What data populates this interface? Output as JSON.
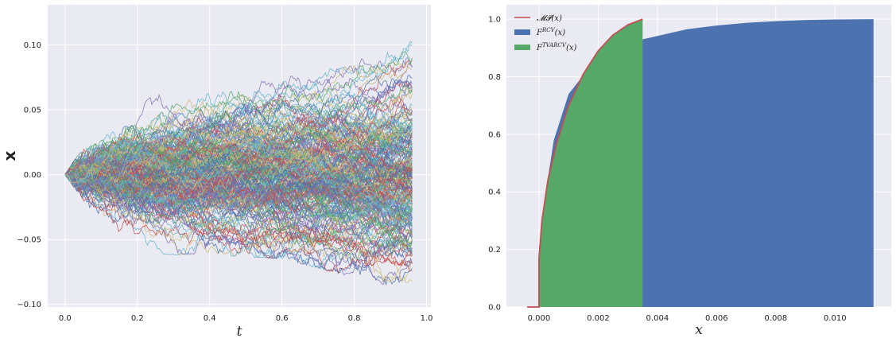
{
  "chart_data": [
    {
      "type": "line",
      "description_role": "simulated random paths",
      "xlabel": "t",
      "ylabel": "x",
      "xlim": [
        -0.048,
        1.012
      ],
      "ylim": [
        -0.102,
        0.131
      ],
      "x_ticks": [
        0.0,
        0.2,
        0.4,
        0.6,
        0.8,
        1.0
      ],
      "x_tick_labels": [
        "0.0",
        "0.2",
        "0.4",
        "0.6",
        "0.8",
        "1.0"
      ],
      "y_ticks": [
        -0.1,
        -0.05,
        0.0,
        0.05,
        0.1
      ],
      "y_tick_labels": [
        "−0.10",
        "−0.05",
        "0.00",
        "0.05",
        "0.10"
      ],
      "x_start": 0.0,
      "x_end": 0.96,
      "n_paths": 240,
      "n_steps": 240,
      "start_value": 0.0,
      "envelope_top": [
        [
          0.0,
          0.0
        ],
        [
          0.1,
          0.045
        ],
        [
          0.2,
          0.07
        ],
        [
          0.4,
          0.065
        ],
        [
          0.6,
          0.075
        ],
        [
          0.8,
          0.085
        ],
        [
          0.96,
          0.12
        ]
      ],
      "envelope_bottom": [
        [
          0.0,
          0.0
        ],
        [
          0.1,
          -0.04
        ],
        [
          0.2,
          -0.062
        ],
        [
          0.4,
          -0.062
        ],
        [
          0.6,
          -0.065
        ],
        [
          0.8,
          -0.08
        ],
        [
          0.96,
          -0.09
        ]
      ],
      "series_colors": [
        "#4c72b0",
        "#55a868",
        "#c44e52",
        "#8172b2",
        "#ccb974",
        "#64b5cd"
      ],
      "grid": true
    },
    {
      "type": "area",
      "description_role": "empirical CDFs vs Marchenko-Pastur law",
      "xlabel": "x",
      "ylabel": "",
      "xlim": [
        -0.0011,
        0.0119
      ],
      "ylim": [
        0.0,
        1.05
      ],
      "x_ticks": [
        0.0,
        0.002,
        0.004,
        0.006,
        0.008,
        0.01
      ],
      "x_tick_labels": [
        "0.000",
        "0.002",
        "0.004",
        "0.006",
        "0.008",
        "0.010"
      ],
      "y_ticks": [
        0.0,
        0.2,
        0.4,
        0.6,
        0.8,
        1.0
      ],
      "y_tick_labels": [
        "0.0",
        "0.2",
        "0.4",
        "0.6",
        "0.8",
        "1.0"
      ],
      "series": [
        {
          "name": "MP(x)",
          "kind": "line",
          "color": "#c44e52",
          "x": [
            -0.0004,
            0.0,
            1e-06,
            0.0001,
            0.0003,
            0.0006,
            0.001,
            0.0015,
            0.002,
            0.0025,
            0.003,
            0.0035
          ],
          "y": [
            0.0,
            0.0,
            0.17,
            0.3,
            0.44,
            0.57,
            0.7,
            0.81,
            0.89,
            0.945,
            0.98,
            1.0
          ]
        },
        {
          "name": "F^RCV(x)",
          "kind": "step-area",
          "color": "#4c72b0",
          "x": [
            0.0,
            0.0002,
            0.0005,
            0.001,
            0.002,
            0.0035,
            0.00351,
            0.005,
            0.006,
            0.007,
            0.008,
            0.009,
            0.01,
            0.0113
          ],
          "y": [
            0.17,
            0.38,
            0.58,
            0.74,
            0.87,
            0.925,
            0.93,
            0.965,
            0.978,
            0.987,
            0.993,
            0.997,
            0.999,
            1.0
          ]
        },
        {
          "name": "F^TVARCV(x)",
          "kind": "area",
          "color": "#55a868",
          "x": [
            0.0,
            1e-06,
            0.0001,
            0.0003,
            0.0006,
            0.001,
            0.0015,
            0.002,
            0.0025,
            0.003,
            0.0035
          ],
          "y": [
            0.0,
            0.17,
            0.3,
            0.44,
            0.57,
            0.7,
            0.81,
            0.89,
            0.945,
            0.98,
            1.0
          ]
        }
      ],
      "legend": {
        "position": "top-left",
        "entries": [
          {
            "label": "𝓜𝓟(x)",
            "color": "#c44e52",
            "kind": "line"
          },
          {
            "label_base": "F",
            "label_sup": "RCV",
            "label_arg": "(x)",
            "color": "#4c72b0",
            "kind": "patch"
          },
          {
            "label_base": "F",
            "label_sup": "TVARCV",
            "label_arg": "(x)",
            "color": "#55a868",
            "kind": "patch"
          }
        ]
      },
      "grid": true
    }
  ],
  "style": {
    "axes_bg": "#eaeaf2",
    "grid_color": "#ffffff"
  }
}
